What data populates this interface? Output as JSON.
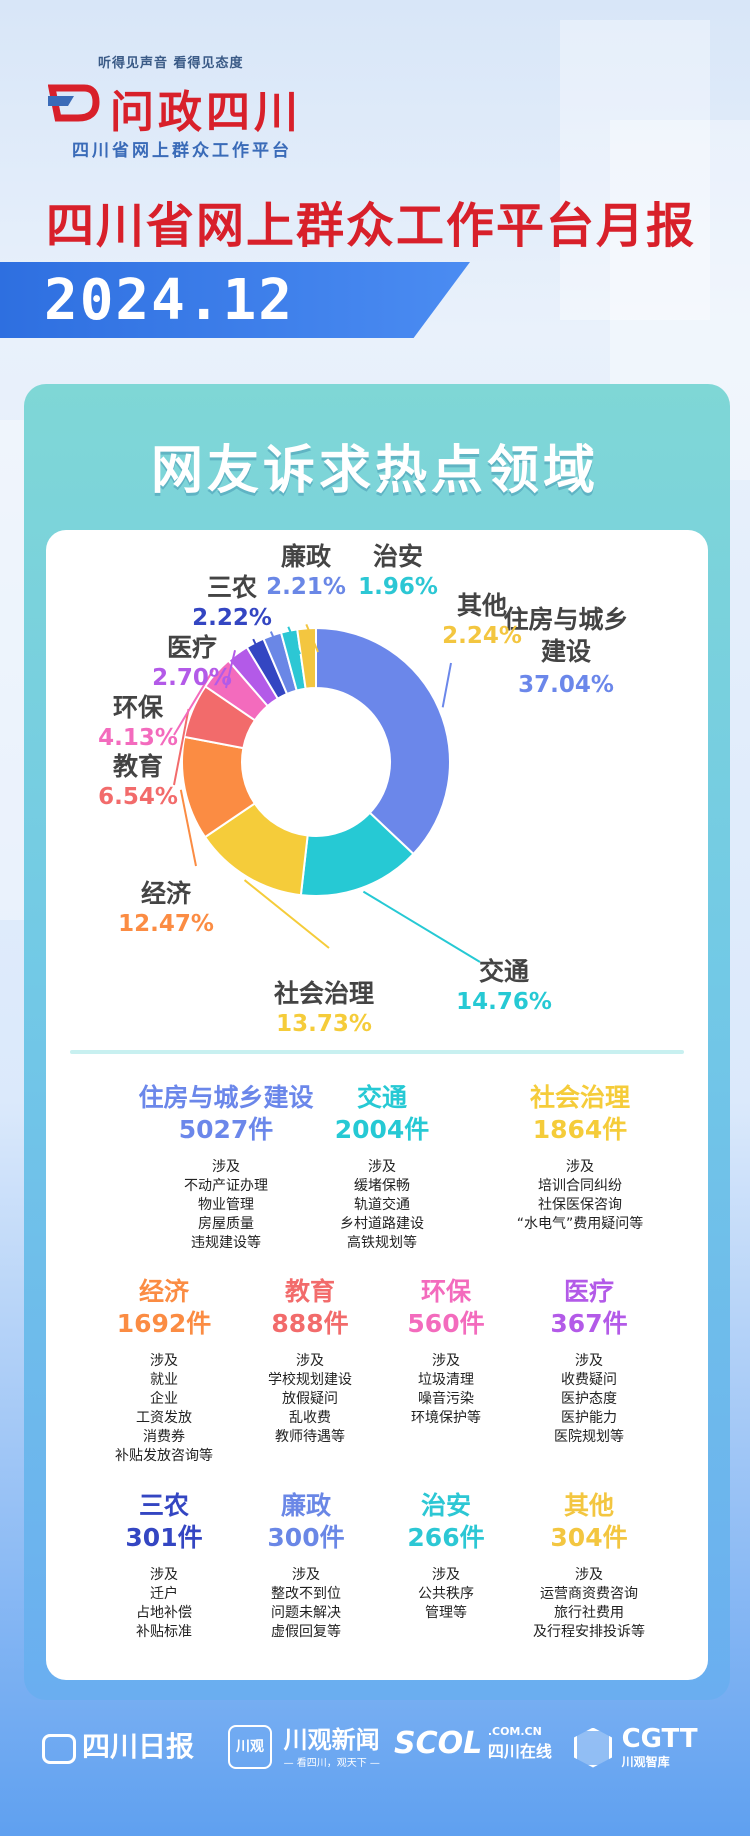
{
  "header": {
    "slogan": "听得见声音  看得见态度",
    "logo_title": "问政四川",
    "logo_sub": "四川省网上群众工作平台",
    "main_title": "四川省网上群众工作平台月报",
    "date": "2024.12"
  },
  "section_title": "网友诉求热点领域",
  "colors": {
    "住房与城乡建设": "#6b87ea",
    "交通": "#26c9d4",
    "社会治理": "#f5cc3a",
    "经济": "#fb8c43",
    "教育": "#f26b6b",
    "环保": "#f36bbd",
    "医疗": "#b35ae8",
    "三农": "#3446c2",
    "廉政": "#6a87e6",
    "治安": "#2cc7d4",
    "其他": "#f3c640"
  },
  "chart_data": {
    "type": "pie",
    "title": "",
    "slices": [
      {
        "label": "住房与城乡建设",
        "value": 37.04,
        "display": "37.04%"
      },
      {
        "label": "交通",
        "value": 14.76,
        "display": "14.76%"
      },
      {
        "label": "社会治理",
        "value": 13.73,
        "display": "13.73%"
      },
      {
        "label": "经济",
        "value": 12.47,
        "display": "12.47%"
      },
      {
        "label": "教育",
        "value": 6.54,
        "display": "6.54%"
      },
      {
        "label": "环保",
        "value": 4.13,
        "display": "4.13%"
      },
      {
        "label": "医疗",
        "value": 2.7,
        "display": "2.70%"
      },
      {
        "label": "三农",
        "value": 2.22,
        "display": "2.22%"
      },
      {
        "label": "廉政",
        "value": 2.21,
        "display": "2.21%"
      },
      {
        "label": "治安",
        "value": 1.96,
        "display": "1.96%"
      },
      {
        "label": "其他",
        "value": 2.24,
        "display": "2.24%"
      }
    ]
  },
  "categories": [
    {
      "name": "住房与城乡建设",
      "count": "5027件",
      "intro": "涉及",
      "items": [
        "不动产证办理",
        "物业管理",
        "房屋质量",
        "违规建设等"
      ]
    },
    {
      "name": "交通",
      "count": "2004件",
      "intro": "涉及",
      "items": [
        "缓堵保畅",
        "轨道交通",
        "乡村道路建设",
        "高铁规划等"
      ]
    },
    {
      "name": "社会治理",
      "count": "1864件",
      "intro": "涉及",
      "items": [
        "培训合同纠纷",
        "社保医保咨询",
        "“水电气”费用疑问等"
      ]
    },
    {
      "name": "经济",
      "count": "1692件",
      "intro": "涉及",
      "items": [
        "就业",
        "企业",
        "工资发放",
        "消费券",
        "补贴发放咨询等"
      ]
    },
    {
      "name": "教育",
      "count": "888件",
      "intro": "涉及",
      "items": [
        "学校规划建设",
        "放假疑问",
        "乱收费",
        "教师待遇等"
      ]
    },
    {
      "name": "环保",
      "count": "560件",
      "intro": "涉及",
      "items": [
        "垃圾清理",
        "噪音污染",
        "环境保护等"
      ]
    },
    {
      "name": "医疗",
      "count": "367件",
      "intro": "涉及",
      "items": [
        "收费疑问",
        "医护态度",
        "医护能力",
        "医院规划等"
      ]
    },
    {
      "name": "三农",
      "count": "301件",
      "intro": "涉及",
      "items": [
        "迁户",
        "占地补偿",
        "补贴标准"
      ]
    },
    {
      "name": "廉政",
      "count": "300件",
      "intro": "涉及",
      "items": [
        "整改不到位",
        "问题未解决",
        "虚假回复等"
      ]
    },
    {
      "name": "治安",
      "count": "266件",
      "intro": "涉及",
      "items": [
        "公共秩序",
        "管理等"
      ]
    },
    {
      "name": "其他",
      "count": "304件",
      "intro": "涉及",
      "items": [
        "运营商资费咨询",
        "旅行社费用",
        "及行程安排投诉等"
      ]
    }
  ],
  "footer": {
    "logo1": "四川日报",
    "logo2_badge": "川观",
    "logo2": "川观新闻",
    "logo2_sub": "— 看四川，观天下 —",
    "logo3": "SCOL",
    "logo3_domain": ".COM.CN",
    "logo3_sub": "四川在线",
    "logo4": "CGTT",
    "logo4_sub": "川观智库"
  }
}
